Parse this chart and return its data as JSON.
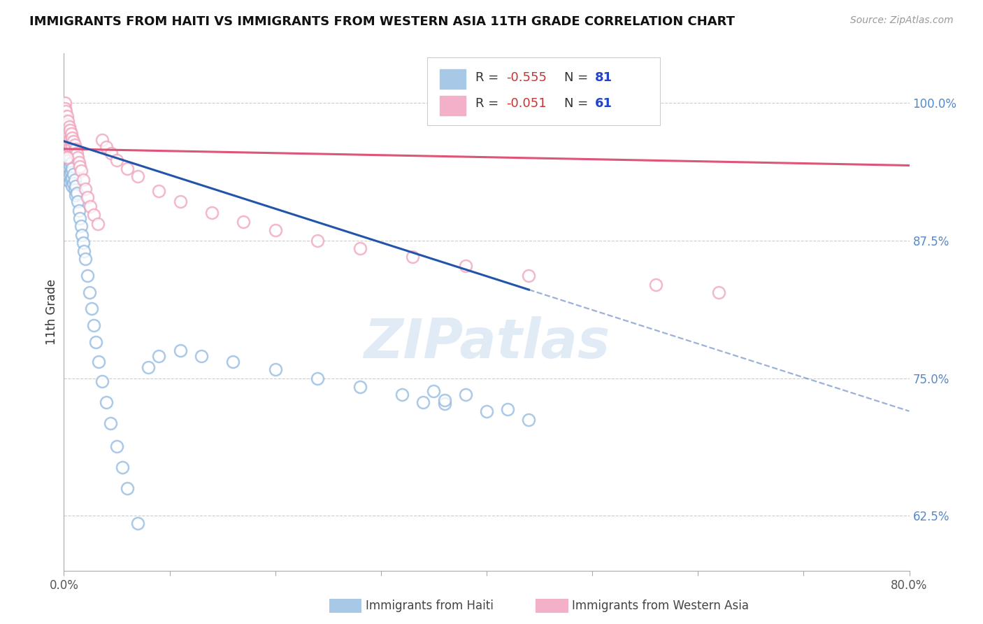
{
  "title": "IMMIGRANTS FROM HAITI VS IMMIGRANTS FROM WESTERN ASIA 11TH GRADE CORRELATION CHART",
  "source": "Source: ZipAtlas.com",
  "ylabel": "11th Grade",
  "right_ytick_vals": [
    0.625,
    0.75,
    0.875,
    1.0
  ],
  "right_yticks": [
    "62.5%",
    "75.0%",
    "87.5%",
    "100.0%"
  ],
  "xlim": [
    0.0,
    0.8
  ],
  "ylim": [
    0.575,
    1.045
  ],
  "watermark": "ZIPatlas",
  "blue_scatter_color": "#90b8e0",
  "pink_scatter_color": "#f0a0bc",
  "blue_line_color": "#2255aa",
  "pink_line_color": "#dd5577",
  "haiti_R": -0.555,
  "haiti_N": 81,
  "western_asia_R": -0.051,
  "western_asia_N": 61,
  "blue_line_y0": 0.965,
  "blue_line_y1": 0.72,
  "blue_line_x0": 0.0,
  "blue_line_x1_solid": 0.44,
  "blue_line_x1_dash": 0.8,
  "pink_line_y0": 0.958,
  "pink_line_y1": 0.943,
  "pink_line_x0": 0.0,
  "pink_line_x1": 0.8,
  "xtick_positions": [
    0.0,
    0.1,
    0.2,
    0.3,
    0.4,
    0.5,
    0.6,
    0.7,
    0.8
  ],
  "haiti_x": [
    0.001,
    0.001,
    0.001,
    0.001,
    0.001,
    0.002,
    0.002,
    0.002,
    0.002,
    0.002,
    0.003,
    0.003,
    0.003,
    0.003,
    0.003,
    0.003,
    0.003,
    0.004,
    0.004,
    0.004,
    0.004,
    0.004,
    0.005,
    0.005,
    0.005,
    0.005,
    0.006,
    0.006,
    0.006,
    0.006,
    0.007,
    0.007,
    0.007,
    0.008,
    0.008,
    0.008,
    0.009,
    0.009,
    0.01,
    0.01,
    0.011,
    0.011,
    0.012,
    0.013,
    0.014,
    0.015,
    0.016,
    0.017,
    0.018,
    0.019,
    0.02,
    0.022,
    0.024,
    0.026,
    0.028,
    0.03,
    0.033,
    0.036,
    0.04,
    0.044,
    0.05,
    0.055,
    0.06,
    0.07,
    0.08,
    0.09,
    0.11,
    0.13,
    0.16,
    0.2,
    0.24,
    0.28,
    0.32,
    0.36,
    0.4,
    0.44,
    0.36,
    0.38,
    0.34,
    0.42,
    0.35
  ],
  "haiti_y": [
    0.985,
    0.978,
    0.972,
    0.963,
    0.955,
    0.97,
    0.963,
    0.957,
    0.95,
    0.942,
    0.968,
    0.962,
    0.956,
    0.95,
    0.943,
    0.937,
    0.93,
    0.96,
    0.953,
    0.946,
    0.94,
    0.933,
    0.955,
    0.948,
    0.94,
    0.933,
    0.95,
    0.943,
    0.936,
    0.928,
    0.945,
    0.937,
    0.93,
    0.94,
    0.932,
    0.924,
    0.935,
    0.927,
    0.93,
    0.921,
    0.924,
    0.916,
    0.918,
    0.91,
    0.902,
    0.895,
    0.888,
    0.88,
    0.873,
    0.865,
    0.858,
    0.843,
    0.828,
    0.813,
    0.798,
    0.783,
    0.765,
    0.747,
    0.728,
    0.709,
    0.688,
    0.669,
    0.65,
    0.618,
    0.76,
    0.77,
    0.775,
    0.77,
    0.765,
    0.758,
    0.75,
    0.742,
    0.735,
    0.727,
    0.72,
    0.712,
    0.73,
    0.735,
    0.728,
    0.722,
    0.738
  ],
  "western_asia_x": [
    0.001,
    0.001,
    0.001,
    0.001,
    0.002,
    0.002,
    0.002,
    0.002,
    0.003,
    0.003,
    0.003,
    0.003,
    0.003,
    0.004,
    0.004,
    0.004,
    0.004,
    0.005,
    0.005,
    0.005,
    0.006,
    0.006,
    0.006,
    0.007,
    0.007,
    0.008,
    0.008,
    0.009,
    0.01,
    0.01,
    0.011,
    0.012,
    0.013,
    0.014,
    0.015,
    0.016,
    0.018,
    0.02,
    0.022,
    0.025,
    0.028,
    0.032,
    0.036,
    0.04,
    0.045,
    0.05,
    0.06,
    0.07,
    0.09,
    0.11,
    0.14,
    0.17,
    0.2,
    0.24,
    0.28,
    0.33,
    0.38,
    0.44,
    0.56,
    0.62,
    0.003
  ],
  "western_asia_y": [
    1.0,
    0.995,
    0.988,
    0.981,
    0.992,
    0.984,
    0.977,
    0.97,
    0.988,
    0.98,
    0.972,
    0.965,
    0.958,
    0.983,
    0.975,
    0.968,
    0.961,
    0.978,
    0.971,
    0.963,
    0.975,
    0.967,
    0.959,
    0.972,
    0.964,
    0.968,
    0.96,
    0.965,
    0.962,
    0.954,
    0.958,
    0.954,
    0.95,
    0.946,
    0.942,
    0.938,
    0.93,
    0.922,
    0.914,
    0.906,
    0.898,
    0.89,
    0.966,
    0.96,
    0.954,
    0.948,
    0.94,
    0.933,
    0.92,
    0.91,
    0.9,
    0.892,
    0.884,
    0.875,
    0.868,
    0.86,
    0.852,
    0.843,
    0.835,
    0.828,
    0.95
  ]
}
